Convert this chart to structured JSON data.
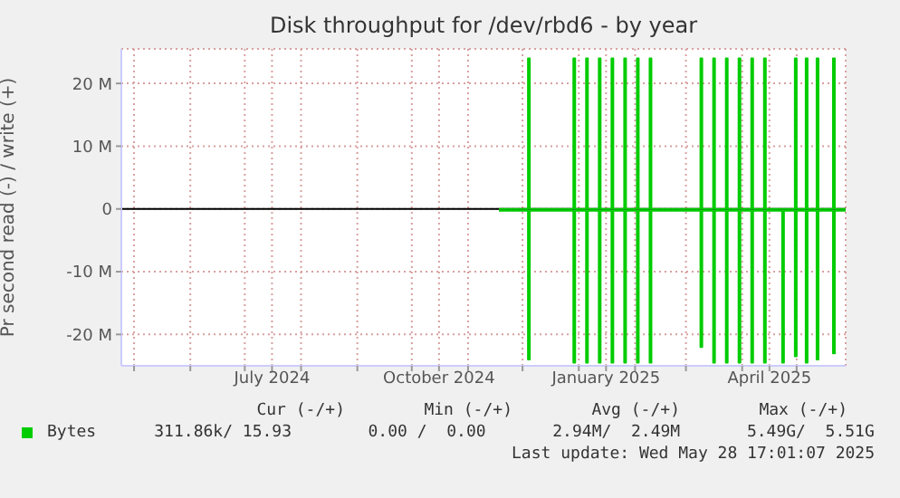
{
  "chart_data": {
    "type": "step",
    "title": "Disk throughput for /dev/rbd6 - by year",
    "ylabel": "Pr second read (-) / write (+)",
    "xlim": [
      "2024-04-24",
      "2025-05-28"
    ],
    "ylim": [
      -25000000,
      25500000
    ],
    "xticks": [
      {
        "value": "2024-05-01",
        "label": null
      },
      {
        "value": "2024-06-01",
        "label": null
      },
      {
        "value": "2024-07-01",
        "label": null
      },
      {
        "value": "2024-07-16",
        "label": "July 2024"
      },
      {
        "value": "2024-08-01",
        "label": null
      },
      {
        "value": "2024-09-01",
        "label": null
      },
      {
        "value": "2024-10-01",
        "label": null
      },
      {
        "value": "2024-10-16",
        "label": "October 2024"
      },
      {
        "value": "2024-11-01",
        "label": null
      },
      {
        "value": "2024-12-01",
        "label": null
      },
      {
        "value": "2025-01-01",
        "label": null
      },
      {
        "value": "2025-01-16",
        "label": "January 2025"
      },
      {
        "value": "2025-02-01",
        "label": null
      },
      {
        "value": "2025-03-01",
        "label": null
      },
      {
        "value": "2025-04-01",
        "label": null
      },
      {
        "value": "2025-04-16",
        "label": "April 2025"
      },
      {
        "value": "2025-05-01",
        "label": null
      }
    ],
    "yticks": [
      {
        "value": -20000000,
        "label": "-20 M"
      },
      {
        "value": -10000000,
        "label": "-10 M"
      },
      {
        "value": 0,
        "label": "0"
      },
      {
        "value": 10000000,
        "label": "10 M"
      },
      {
        "value": 20000000,
        "label": "20 M"
      }
    ],
    "grid": true,
    "legend": "bottom",
    "ref_lines": [
      {
        "axis": "y",
        "value": 0,
        "color": "#000000"
      }
    ],
    "series": [
      {
        "name": "Bytes",
        "color": "#00cc00",
        "x": [
          "2024-11-18",
          "2024-12-04",
          "2024-12-05",
          "2024-12-29",
          "2024-12-30",
          "2025-01-05",
          "2025-01-06",
          "2025-01-12",
          "2025-01-13",
          "2025-01-19",
          "2025-01-20",
          "2025-01-26",
          "2025-01-27",
          "2025-02-02",
          "2025-02-03",
          "2025-02-09",
          "2025-02-10",
          "2025-03-09",
          "2025-03-10",
          "2025-03-16",
          "2025-03-17",
          "2025-03-23",
          "2025-03-24",
          "2025-03-30",
          "2025-03-31",
          "2025-04-06",
          "2025-04-07",
          "2025-04-13",
          "2025-04-14",
          "2025-04-30",
          "2025-05-01",
          "2025-05-06",
          "2025-05-07",
          "2025-05-12",
          "2025-05-13",
          "2025-05-21",
          "2025-05-22",
          "2025-05-28"
        ],
        "values": [
          0,
          24000000,
          0,
          24000000,
          0,
          24000000,
          0,
          24000000,
          0,
          24000000,
          0,
          24000000,
          0,
          24000000,
          0,
          24000000,
          0,
          24000000,
          0,
          24000000,
          0,
          24000000,
          0,
          24000000,
          0,
          24000000,
          0,
          24000000,
          0,
          24000000,
          0,
          24000000,
          0,
          24000000,
          0,
          24000000,
          0,
          0
        ]
      },
      {
        "color": "#00cc00",
        "x": [
          "2024-11-18",
          "2024-12-04",
          "2024-12-05",
          "2024-12-29",
          "2024-12-30",
          "2025-01-05",
          "2025-01-06",
          "2025-01-12",
          "2025-01-13",
          "2025-01-19",
          "2025-01-20",
          "2025-01-26",
          "2025-01-27",
          "2025-02-02",
          "2025-02-03",
          "2025-02-09",
          "2025-02-10",
          "2025-03-09",
          "2025-03-10",
          "2025-03-16",
          "2025-03-17",
          "2025-03-23",
          "2025-03-24",
          "2025-03-30",
          "2025-03-31",
          "2025-04-06",
          "2025-04-07",
          "2025-04-13",
          "2025-04-14",
          "2025-04-23",
          "2025-04-24",
          "2025-04-30",
          "2025-05-01",
          "2025-05-06",
          "2025-05-07",
          "2025-05-12",
          "2025-05-13",
          "2025-05-21",
          "2025-05-22",
          "2025-05-28"
        ],
        "values": [
          -300000,
          -24000000,
          -300000,
          -24500000,
          -300000,
          -24500000,
          -300000,
          -24500000,
          -300000,
          -24500000,
          -300000,
          -24500000,
          -300000,
          -24500000,
          -300000,
          -24500000,
          -300000,
          -22000000,
          -300000,
          -24500000,
          -300000,
          -24500000,
          -300000,
          -24500000,
          -300000,
          -24500000,
          -300000,
          -24500000,
          -300000,
          -24500000,
          -300000,
          -23500000,
          -300000,
          -24500000,
          -300000,
          -24000000,
          -300000,
          -23000000,
          -300000,
          -300000
        ]
      }
    ],
    "annotations": [
      "Cur (-/+)",
      "Min (-/+)",
      "Avg (-/+)",
      "Max (-/+)",
      "311.86k/ 15.93",
      "0.00 /  0.00",
      "2.94M/  2.49M",
      "5.49G/  5.51G",
      "Last update: Wed May 28 17:01:07 2025"
    ]
  }
}
